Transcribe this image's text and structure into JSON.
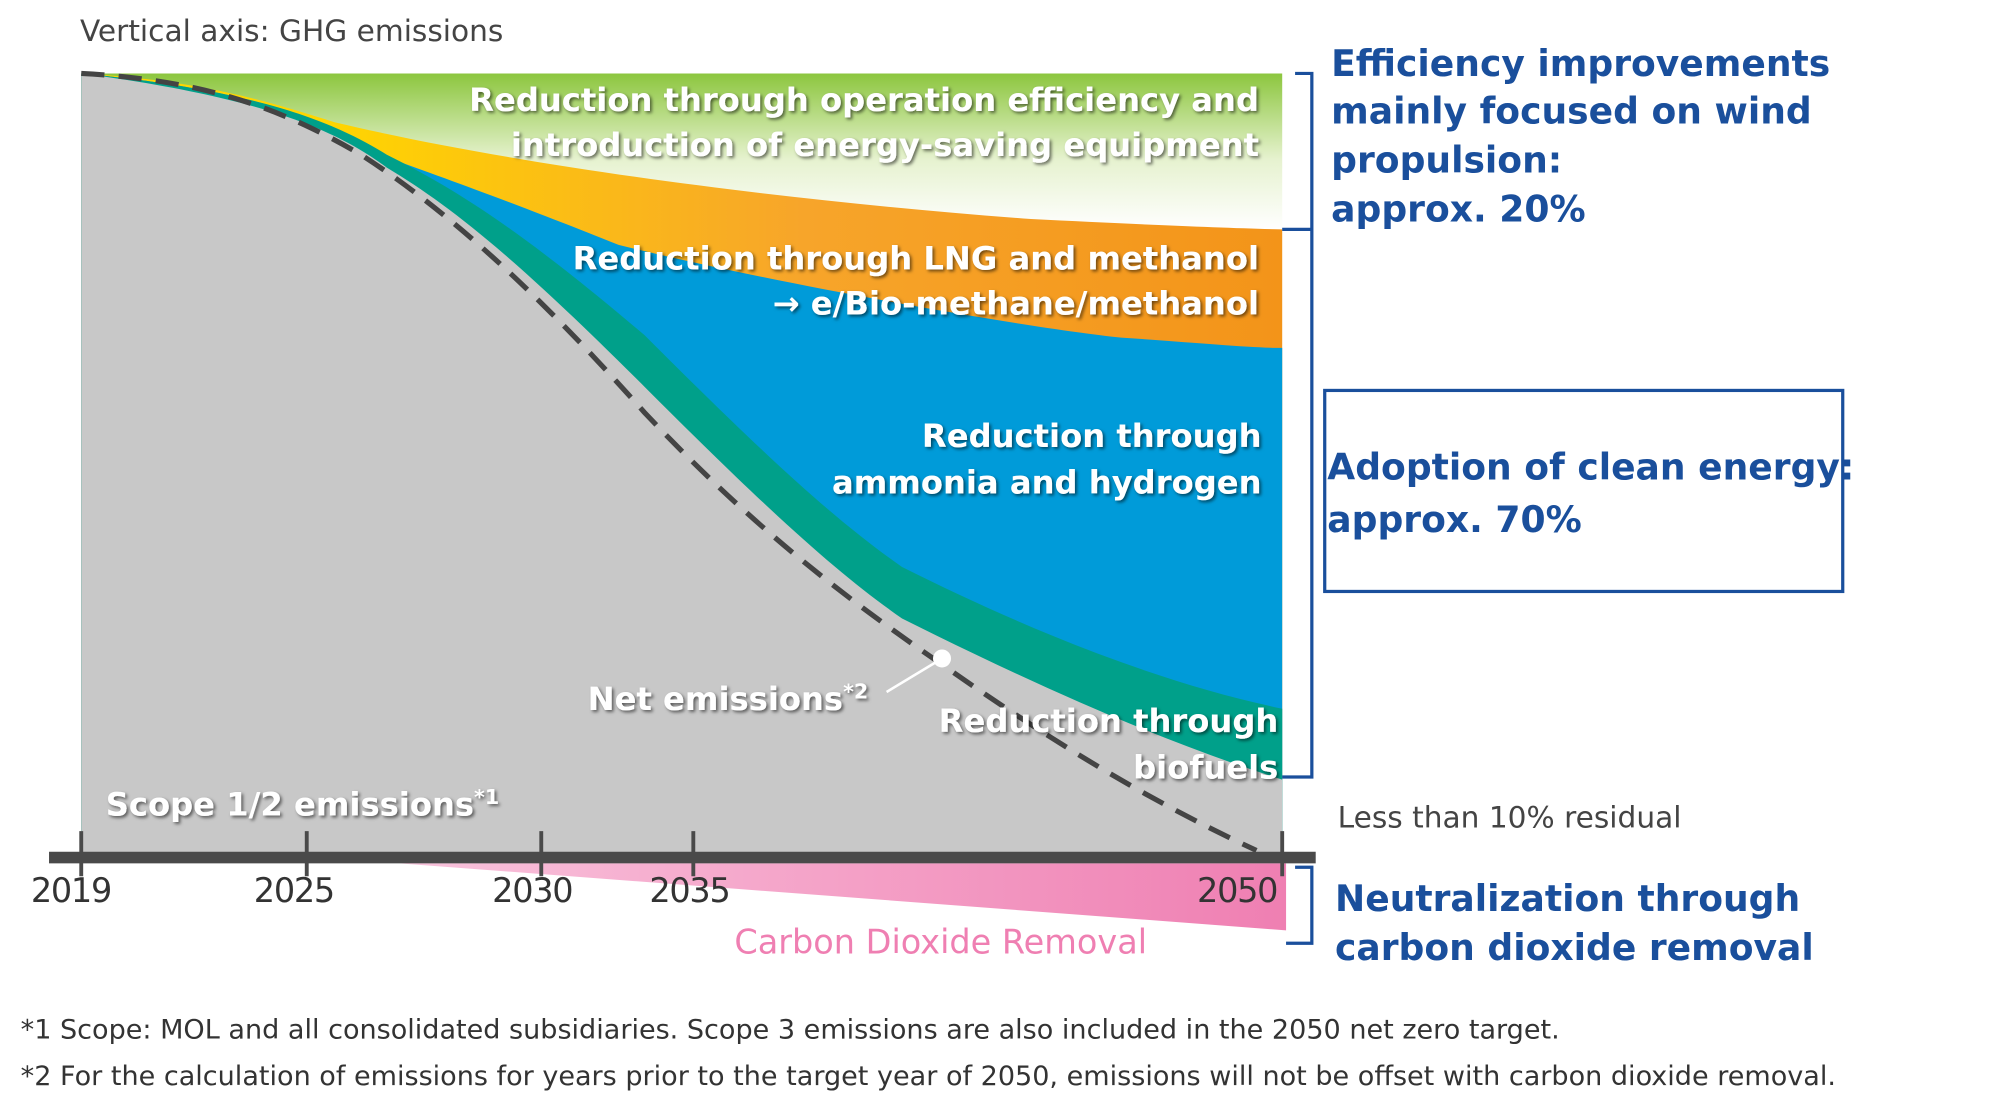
{
  "axis_label": "Vertical axis: GHG emissions",
  "regions": {
    "efficiency": [
      "Reduction through operation efficiency and",
      "introduction of energy-saving equipment"
    ],
    "lng": [
      "Reduction through LNG and methanol",
      "→ e/Bio-methane/methanol"
    ],
    "ammonia": [
      "Reduction through",
      "ammonia and hydrogen"
    ],
    "biofuels": [
      "Reduction through",
      "biofuels"
    ],
    "scope": {
      "label": "Scope 1/2 emissions",
      "note": "*1"
    },
    "net": {
      "label": "Net emissions",
      "note": "*2"
    },
    "removal": "Carbon Dioxide Removal"
  },
  "years": [
    "2019",
    "2025",
    "2030",
    "2035",
    "2050"
  ],
  "brackets": {
    "efficiency": [
      "Efficiency improvements",
      "mainly focused on wind",
      "propulsion:",
      "approx. 20%"
    ],
    "clean": [
      "Adoption of clean energy:",
      "approx. 70%"
    ],
    "residual": "Less than 10% residual",
    "removal": [
      "Neutralization through",
      "carbon dioxide removal"
    ]
  },
  "footnotes": [
    "*1 Scope: MOL and all consolidated subsidiaries. Scope 3 emissions are also included in the 2050 net zero target.",
    "*2 For the calculation of emissions for years prior to the target year of 2050, emissions will not be offset with carbon dioxide removal."
  ]
}
